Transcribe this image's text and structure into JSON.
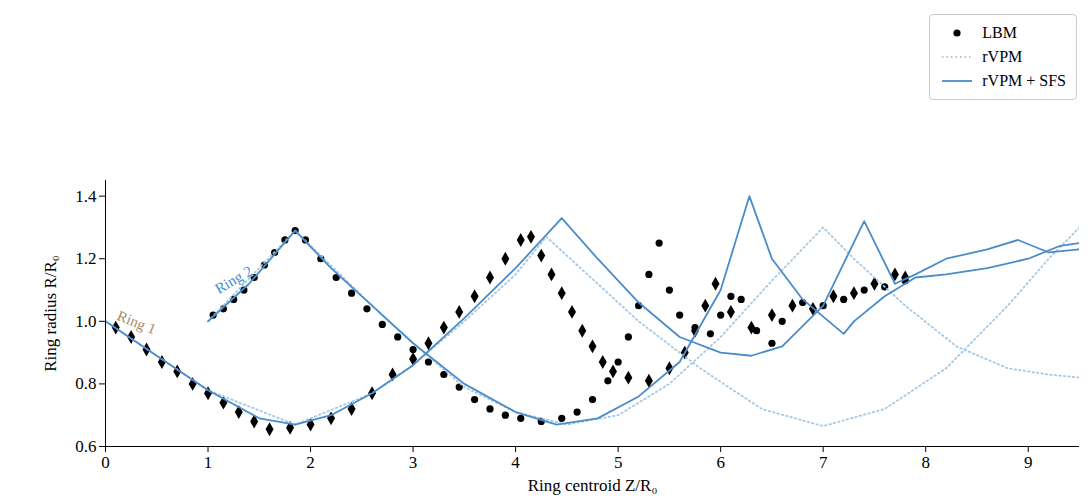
{
  "chart_data": {
    "type": "line",
    "x_label": "Ring centroid Z/R₀",
    "y_label": "Ring radius R/R₀",
    "xlim": [
      0,
      9.5
    ],
    "ylim": [
      0.6,
      1.45
    ],
    "xticks": [
      0,
      1,
      2,
      3,
      4,
      5,
      6,
      7,
      8,
      9
    ],
    "yticks": [
      0.6,
      0.8,
      {
        "value": 1,
        "label": "1.0"
      },
      1.2,
      1.4
    ],
    "grid": false,
    "legend": "top right",
    "annotations": [
      {
        "text": "Ring 1",
        "x": 0.12,
        "y": 1.02,
        "color": "#a88c62"
      },
      {
        "text": "Ring 2",
        "x": 1.08,
        "y": 1.1,
        "color": "#4a8cc9"
      }
    ],
    "series": [
      {
        "name": "LBM",
        "ring": "Ring 1",
        "color": "#000000",
        "marker": "diamond",
        "line_style": "none",
        "x": [
          0.1,
          0.25,
          0.4,
          0.55,
          0.7,
          0.85,
          1.0,
          1.15,
          1.3,
          1.45,
          1.6,
          1.8,
          2.0,
          2.2,
          2.4,
          2.6,
          2.8,
          3.0,
          3.15,
          3.3,
          3.45,
          3.6,
          3.75,
          3.9,
          4.05,
          4.15,
          4.25,
          4.35,
          4.45,
          4.55,
          4.65,
          4.75,
          4.85,
          4.95,
          5.1,
          5.3,
          5.5,
          5.65,
          5.75,
          5.85,
          5.95,
          6.1,
          6.3,
          6.5,
          6.7,
          6.9,
          7.1,
          7.3,
          7.5,
          7.7,
          7.8
        ],
        "y": [
          0.98,
          0.95,
          0.91,
          0.87,
          0.84,
          0.8,
          0.77,
          0.74,
          0.71,
          0.68,
          0.655,
          0.66,
          0.67,
          0.69,
          0.72,
          0.77,
          0.83,
          0.88,
          0.93,
          0.98,
          1.03,
          1.08,
          1.14,
          1.2,
          1.26,
          1.27,
          1.21,
          1.15,
          1.09,
          1.03,
          0.97,
          0.92,
          0.87,
          0.84,
          0.82,
          0.81,
          0.85,
          0.9,
          0.97,
          1.05,
          1.12,
          1.03,
          0.98,
          1.02,
          1.05,
          1.04,
          1.08,
          1.09,
          1.12,
          1.15,
          1.14
        ]
      },
      {
        "name": "LBM",
        "ring": "Ring 2",
        "color": "#000000",
        "marker": "circle",
        "line_style": "none",
        "x": [
          1.05,
          1.15,
          1.25,
          1.35,
          1.45,
          1.55,
          1.65,
          1.75,
          1.85,
          1.95,
          2.1,
          2.25,
          2.4,
          2.55,
          2.7,
          2.85,
          3.0,
          3.15,
          3.3,
          3.45,
          3.6,
          3.75,
          3.9,
          4.05,
          4.25,
          4.45,
          4.6,
          4.75,
          4.9,
          5.0,
          5.1,
          5.2,
          5.3,
          5.4,
          5.5,
          5.6,
          5.75,
          5.9,
          6.0,
          6.1,
          6.2,
          6.35,
          6.5,
          6.6,
          6.8,
          7.0,
          7.2,
          7.4,
          7.6,
          7.8
        ],
        "y": [
          1.02,
          1.04,
          1.07,
          1.1,
          1.14,
          1.18,
          1.22,
          1.26,
          1.29,
          1.26,
          1.2,
          1.14,
          1.09,
          1.04,
          0.99,
          0.95,
          0.91,
          0.87,
          0.83,
          0.79,
          0.75,
          0.72,
          0.7,
          0.69,
          0.68,
          0.69,
          0.71,
          0.75,
          0.81,
          0.87,
          0.95,
          1.05,
          1.15,
          1.25,
          1.1,
          1.02,
          0.98,
          0.96,
          1.02,
          1.08,
          1.07,
          0.97,
          0.93,
          1.0,
          1.06,
          1.05,
          1.07,
          1.1,
          1.11,
          1.13
        ]
      },
      {
        "name": "rVPM",
        "ring": "Ring 1",
        "color": "#a6c8e6",
        "marker": "none",
        "line_style": "dotted",
        "x": [
          0,
          1.0,
          1.85,
          2.6,
          3.0,
          3.5,
          4.0,
          4.3,
          4.7,
          5.2,
          5.8,
          6.4,
          7.0,
          7.6,
          8.2,
          8.8,
          9.2,
          9.5
        ],
        "y": [
          1.0,
          0.78,
          0.67,
          0.77,
          0.86,
          1.0,
          1.15,
          1.27,
          1.15,
          1.0,
          0.85,
          0.72,
          0.665,
          0.72,
          0.85,
          1.05,
          1.2,
          1.3
        ]
      },
      {
        "name": "rVPM",
        "ring": "Ring 2",
        "color": "#a6c8e6",
        "marker": "none",
        "line_style": "dotted",
        "x": [
          1.0,
          1.85,
          2.6,
          3.0,
          3.5,
          4.0,
          4.5,
          5.0,
          5.5,
          6.0,
          6.5,
          7.0,
          7.3,
          7.8,
          8.3,
          8.8,
          9.2,
          9.5
        ],
        "y": [
          1.0,
          1.29,
          1.05,
          0.93,
          0.79,
          0.71,
          0.67,
          0.7,
          0.8,
          0.95,
          1.13,
          1.3,
          1.2,
          1.05,
          0.92,
          0.85,
          0.83,
          0.82
        ]
      },
      {
        "name": "rVPM + SFS",
        "ring": "Ring 1",
        "color": "#4a8cc9",
        "marker": "none",
        "line_style": "solid",
        "x": [
          0,
          0.5,
          1.0,
          1.5,
          1.85,
          2.2,
          2.6,
          3.0,
          3.5,
          4.0,
          4.45,
          4.8,
          5.2,
          5.6,
          6.0,
          6.3,
          6.6,
          7.0,
          7.4,
          7.7,
          7.9,
          8.2,
          8.6,
          8.9,
          9.2,
          9.5
        ],
        "y": [
          1.0,
          0.89,
          0.78,
          0.69,
          0.67,
          0.7,
          0.77,
          0.86,
          1.01,
          1.17,
          1.33,
          1.2,
          1.06,
          0.95,
          0.9,
          0.89,
          0.92,
          1.05,
          1.32,
          1.12,
          1.15,
          1.2,
          1.23,
          1.26,
          1.22,
          1.23
        ]
      },
      {
        "name": "rVPM + SFS",
        "ring": "Ring 2",
        "color": "#4a8cc9",
        "marker": "none",
        "line_style": "solid",
        "x": [
          1.0,
          1.4,
          1.85,
          2.2,
          2.6,
          3.0,
          3.5,
          4.0,
          4.4,
          4.8,
          5.2,
          5.6,
          6.0,
          6.28,
          6.5,
          6.8,
          7.2,
          7.3,
          7.6,
          7.9,
          8.2,
          8.6,
          9.0,
          9.3,
          9.5
        ],
        "y": [
          1.0,
          1.12,
          1.29,
          1.17,
          1.05,
          0.93,
          0.8,
          0.71,
          0.67,
          0.69,
          0.76,
          0.87,
          1.1,
          1.4,
          1.2,
          1.07,
          0.96,
          1.0,
          1.08,
          1.14,
          1.15,
          1.17,
          1.2,
          1.24,
          1.25
        ]
      }
    ]
  }
}
